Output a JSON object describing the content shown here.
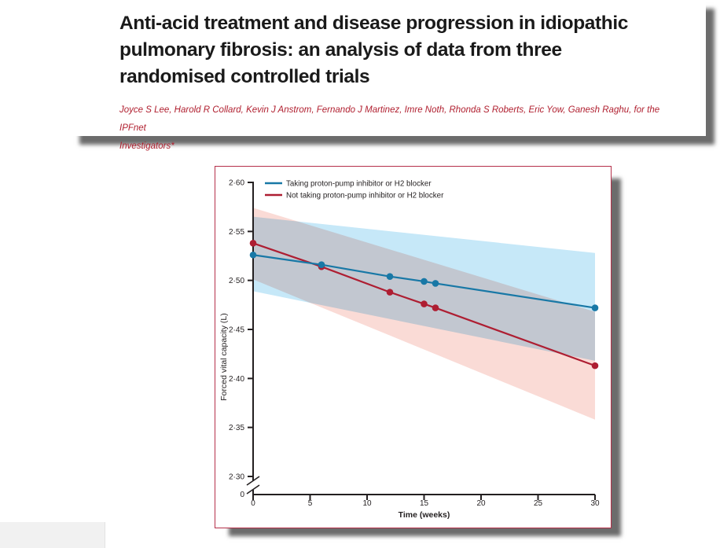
{
  "article": {
    "title_lines": [
      "Anti-acid treatment and disease progression in idiopathic",
      "pulmonary fibrosis: an analysis of data from three",
      "randomised controlled trials"
    ],
    "title_color": "#1a1a1a",
    "authors_lines": [
      "Joyce S Lee, Harold R Collard, Kevin J Anstrom, Fernando J Martinez, Imre Noth, Rhonda S Roberts, Eric Yow, Ganesh Raghu, for the IPFnet",
      "Investigators*"
    ],
    "authors_color": "#b01f2f"
  },
  "figure": {
    "border_color": "#b5304a",
    "background": "#ffffff"
  },
  "chart_data": {
    "type": "line",
    "title": "",
    "xlabel": "Time (weeks)",
    "ylabel": "Forced vital capacity (L)",
    "axis_color": "#231f20",
    "grid": false,
    "legend_position": "top-left",
    "xlim": [
      0,
      30
    ],
    "ylim_display": [
      2.3,
      2.6
    ],
    "y_axis_break": true,
    "y_zero_label": "0",
    "x_ticks": [
      0,
      5,
      10,
      15,
      20,
      25,
      30
    ],
    "y_ticks": [
      {
        "value": 2.6,
        "label": "2·60"
      },
      {
        "value": 2.55,
        "label": "2·55"
      },
      {
        "value": 2.5,
        "label": "2·50"
      },
      {
        "value": 2.45,
        "label": "2·45"
      },
      {
        "value": 2.4,
        "label": "2·40"
      },
      {
        "value": 2.35,
        "label": "2·35"
      },
      {
        "value": 2.3,
        "label": "2·30"
      }
    ],
    "x": [
      0,
      6,
      12,
      15,
      16,
      30
    ],
    "series": [
      {
        "name": "Taking proton-pump inhibitor or H2 blocker",
        "color": "#1878a6",
        "fill_color": "#c6e8f8",
        "values": [
          2.526,
          2.516,
          2.504,
          2.499,
          2.497,
          2.472
        ],
        "ci_top": {
          "x": [
            0,
            30
          ],
          "values": [
            2.565,
            2.528
          ]
        },
        "ci_bottom": {
          "x": [
            0,
            30
          ],
          "values": [
            2.489,
            2.418
          ]
        }
      },
      {
        "name": "Not taking proton-pump inhibitor or H2 blocker",
        "color": "#ae1e32",
        "fill_color": "#fadbd6",
        "values": [
          2.538,
          2.514,
          2.488,
          2.476,
          2.472,
          2.413
        ],
        "ci_top": {
          "x": [
            0,
            30
          ],
          "values": [
            2.574,
            2.468
          ]
        },
        "ci_bottom": {
          "x": [
            0,
            30
          ],
          "values": [
            2.501,
            2.358
          ]
        }
      }
    ]
  }
}
